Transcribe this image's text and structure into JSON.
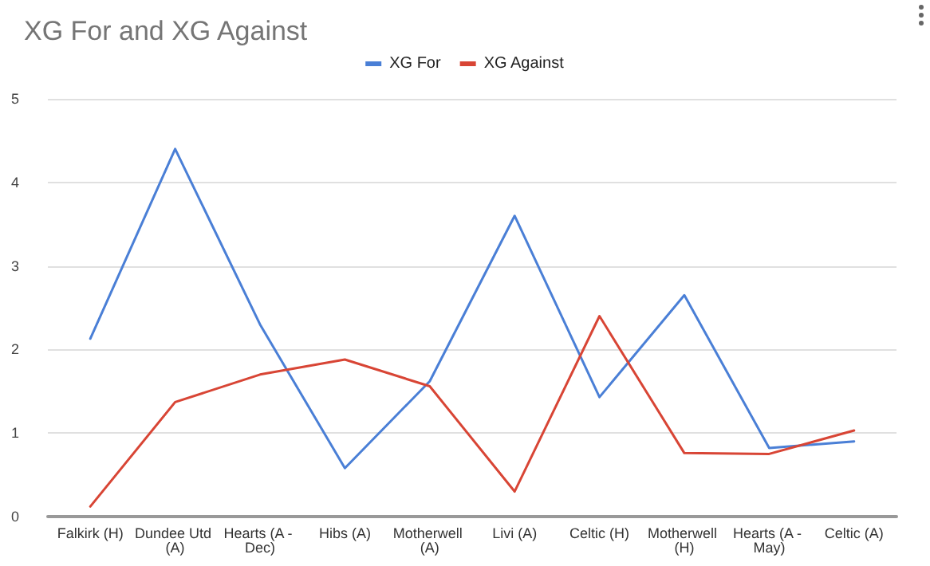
{
  "chart_data": {
    "type": "line",
    "title": "XG For and XG Against",
    "categories": [
      "Falkirk (H)",
      "Dundee Utd (A)",
      "Hearts (A - Dec)",
      "Hibs (A)",
      "Motherwell (A)",
      "Livi (A)",
      "Celtic (H)",
      "Motherwell (H)",
      "Hearts (A - May)",
      "Celtic (A)"
    ],
    "series": [
      {
        "name": "XG For",
        "color": "#4a7fd6",
        "values": [
          2.13,
          4.4,
          2.3,
          0.58,
          1.62,
          3.6,
          1.43,
          2.65,
          0.82,
          0.9
        ]
      },
      {
        "name": "XG Against",
        "color": "#d84535",
        "values": [
          0.12,
          1.37,
          1.7,
          1.88,
          1.56,
          0.3,
          2.4,
          0.76,
          0.75,
          1.03
        ]
      }
    ],
    "ylim": [
      0,
      5
    ],
    "yticks": [
      0,
      1,
      2,
      3,
      4,
      5
    ],
    "grid": "y",
    "legend": "top",
    "marker": "none",
    "line_style": "solid"
  }
}
